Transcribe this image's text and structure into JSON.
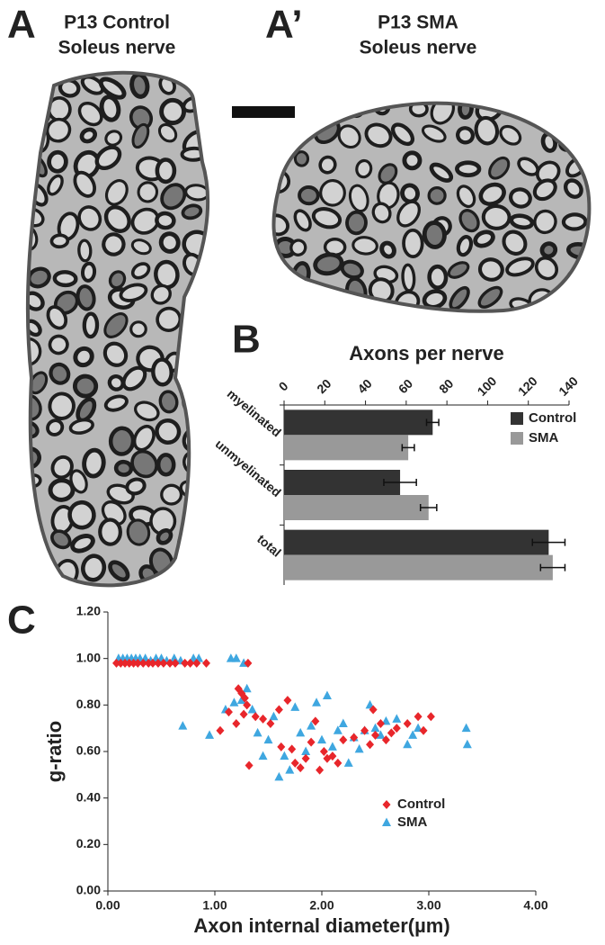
{
  "panels": [
    {
      "label": "A",
      "title": [
        "P13 Control",
        "Soleus nerve"
      ]
    },
    {
      "label": "A’",
      "title": [
        "P13 SMA",
        "Soleus nerve"
      ]
    }
  ],
  "chart_data": [
    {
      "type": "bar",
      "orientation": "horizontal",
      "panel_label": "B",
      "title": "Axons per nerve",
      "categories": [
        "myelinated",
        "unmyelinated",
        "total"
      ],
      "series": [
        {
          "name": "Control",
          "color": "#333333",
          "values": [
            73,
            57,
            130
          ],
          "errors": [
            3,
            8,
            8
          ]
        },
        {
          "name": "SMA",
          "color": "#999999",
          "values": [
            61,
            71,
            132
          ],
          "errors": [
            3,
            4,
            6
          ]
        }
      ],
      "xlim": [
        0,
        140
      ],
      "xticks": [
        0,
        20,
        40,
        60,
        80,
        100,
        120,
        140
      ],
      "legend": "upper right"
    },
    {
      "type": "scatter",
      "panel_label": "C",
      "xlabel": "Axon internal diameter(µm)",
      "ylabel": "g-ratio",
      "series": [
        {
          "name": "Control",
          "color": "#e8262b",
          "marker": "diamond",
          "x": [
            0.08,
            0.12,
            0.16,
            0.2,
            0.24,
            0.28,
            0.33,
            0.38,
            0.42,
            0.47,
            0.52,
            0.58,
            0.63,
            0.72,
            0.77,
            0.83,
            0.92,
            1.31,
            1.22,
            1.25,
            1.28,
            1.3,
            1.27,
            1.32,
            1.05,
            1.13,
            1.2,
            1.38,
            1.45,
            1.52,
            1.6,
            1.68,
            1.72,
            1.75,
            1.8,
            1.85,
            1.9,
            1.94,
            1.98,
            2.02,
            2.05,
            2.1,
            2.15,
            2.2,
            2.3,
            2.4,
            2.45,
            2.5,
            2.55,
            2.6,
            2.65,
            2.7,
            2.8,
            2.9,
            2.95,
            3.02,
            2.48,
            1.62
          ],
          "values": [
            0.98,
            0.98,
            0.98,
            0.98,
            0.98,
            0.98,
            0.98,
            0.98,
            0.98,
            0.98,
            0.98,
            0.98,
            0.98,
            0.98,
            0.98,
            0.98,
            0.98,
            0.98,
            0.87,
            0.85,
            0.83,
            0.8,
            0.76,
            0.54,
            0.69,
            0.77,
            0.72,
            0.75,
            0.74,
            0.72,
            0.78,
            0.82,
            0.61,
            0.55,
            0.53,
            0.57,
            0.64,
            0.73,
            0.52,
            0.6,
            0.57,
            0.58,
            0.55,
            0.65,
            0.66,
            0.69,
            0.63,
            0.67,
            0.72,
            0.65,
            0.68,
            0.7,
            0.72,
            0.75,
            0.69,
            0.75,
            0.78,
            0.62
          ]
        },
        {
          "name": "SMA",
          "color": "#3fa7e0",
          "marker": "triangle",
          "x": [
            0.1,
            0.14,
            0.18,
            0.22,
            0.26,
            0.3,
            0.35,
            0.4,
            0.45,
            0.5,
            0.55,
            0.62,
            0.68,
            0.8,
            0.85,
            1.15,
            1.2,
            1.27,
            0.7,
            0.95,
            1.1,
            1.18,
            1.25,
            1.3,
            1.35,
            1.4,
            1.5,
            1.55,
            1.6,
            1.65,
            1.7,
            1.75,
            1.8,
            1.85,
            1.9,
            1.95,
            2.0,
            2.05,
            2.1,
            2.15,
            2.2,
            2.3,
            2.35,
            2.4,
            2.45,
            2.5,
            2.55,
            2.6,
            2.7,
            2.8,
            2.85,
            2.9,
            3.35,
            3.36,
            1.45,
            2.25
          ],
          "values": [
            1.0,
            1.0,
            1.0,
            1.0,
            1.0,
            1.0,
            1.0,
            0.99,
            1.0,
            1.0,
            0.99,
            1.0,
            0.99,
            1.0,
            1.0,
            1.0,
            1.0,
            0.98,
            0.71,
            0.67,
            0.78,
            0.81,
            0.82,
            0.87,
            0.78,
            0.68,
            0.65,
            0.75,
            0.49,
            0.58,
            0.52,
            0.79,
            0.68,
            0.6,
            0.71,
            0.81,
            0.65,
            0.84,
            0.62,
            0.69,
            0.72,
            0.66,
            0.61,
            0.69,
            0.8,
            0.7,
            0.67,
            0.73,
            0.74,
            0.63,
            0.67,
            0.7,
            0.7,
            0.63,
            0.58,
            0.55
          ]
        }
      ],
      "xlim": [
        0,
        4
      ],
      "ylim": [
        0,
        1.2
      ],
      "xticks": [
        {
          "value": 0,
          "label": "0.00"
        },
        {
          "value": 1,
          "label": "1.00"
        },
        {
          "value": 2,
          "label": "2.00"
        },
        {
          "value": 3,
          "label": "3.00"
        },
        {
          "value": 4,
          "label": "4.00"
        }
      ],
      "yticks": [
        {
          "value": 0,
          "label": "0.00"
        },
        {
          "value": 0.2,
          "label": "0.20"
        },
        {
          "value": 0.4,
          "label": "0.40"
        },
        {
          "value": 0.6,
          "label": "0.60"
        },
        {
          "value": 0.8,
          "label": "0.80"
        },
        {
          "value": 1,
          "label": "1.00"
        },
        {
          "value": 1.2,
          "label": "1.20"
        }
      ],
      "legend": "lower right"
    }
  ]
}
